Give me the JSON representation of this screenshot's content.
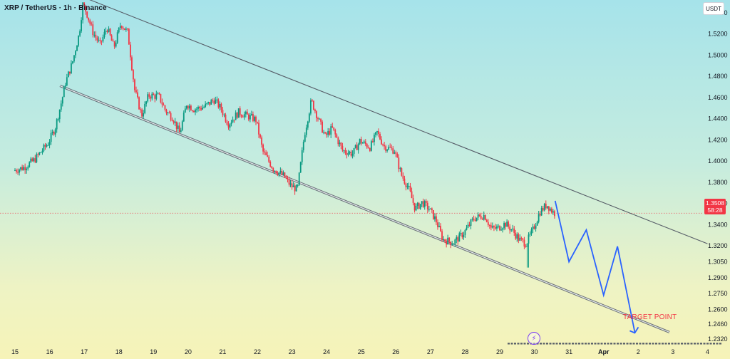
{
  "header": {
    "title": "XRP / TetherUS · 1h · Binance"
  },
  "currency_badge": "USDT",
  "current_price": {
    "value": "1.3508",
    "countdown": "58:28"
  },
  "annotation": {
    "target_label": "TARGET POINT"
  },
  "chart_data": {
    "type": "candlestick",
    "title": "XRP / TetherUS · 1h · Binance",
    "y_axis": {
      "ticks": [
        "1.5400",
        "1.5200",
        "1.5000",
        "1.4800",
        "1.4600",
        "1.4400",
        "1.4200",
        "1.4000",
        "1.3800",
        "1.3600",
        "1.3400",
        "1.3200",
        "1.3050",
        "1.2900",
        "1.2750",
        "1.2600",
        "1.2460",
        "1.2320"
      ],
      "ylim": [
        1.228,
        1.552
      ]
    },
    "x_axis": {
      "ticks": [
        "15",
        "16",
        "17",
        "18",
        "19",
        "20",
        "21",
        "22",
        "23",
        "24",
        "25",
        "26",
        "27",
        "28",
        "29",
        "30",
        "31",
        "Apr",
        "2",
        "3",
        "4"
      ],
      "day_range": [
        15,
        35.3
      ]
    },
    "price_path": [
      [
        15.0,
        1.391
      ],
      [
        15.3,
        1.394
      ],
      [
        15.6,
        1.401
      ],
      [
        15.8,
        1.409
      ],
      [
        16.0,
        1.417
      ],
      [
        16.2,
        1.431
      ],
      [
        16.4,
        1.458
      ],
      [
        16.5,
        1.474
      ],
      [
        16.7,
        1.493
      ],
      [
        16.9,
        1.521
      ],
      [
        17.0,
        1.548
      ],
      [
        17.1,
        1.541
      ],
      [
        17.3,
        1.521
      ],
      [
        17.5,
        1.51
      ],
      [
        17.7,
        1.526
      ],
      [
        17.9,
        1.507
      ],
      [
        18.1,
        1.53
      ],
      [
        18.3,
        1.521
      ],
      [
        18.5,
        1.467
      ],
      [
        18.7,
        1.443
      ],
      [
        18.9,
        1.462
      ],
      [
        19.2,
        1.461
      ],
      [
        19.4,
        1.447
      ],
      [
        19.6,
        1.441
      ],
      [
        19.8,
        1.426
      ],
      [
        20.0,
        1.454
      ],
      [
        20.2,
        1.449
      ],
      [
        20.5,
        1.451
      ],
      [
        20.8,
        1.458
      ],
      [
        21.0,
        1.449
      ],
      [
        21.2,
        1.435
      ],
      [
        21.5,
        1.446
      ],
      [
        21.8,
        1.442
      ],
      [
        22.0,
        1.439
      ],
      [
        22.2,
        1.409
      ],
      [
        22.5,
        1.393
      ],
      [
        22.8,
        1.386
      ],
      [
        23.0,
        1.377
      ],
      [
        23.2,
        1.373
      ],
      [
        23.4,
        1.425
      ],
      [
        23.6,
        1.457
      ],
      [
        23.8,
        1.44
      ],
      [
        24.0,
        1.423
      ],
      [
        24.2,
        1.431
      ],
      [
        24.5,
        1.41
      ],
      [
        24.8,
        1.407
      ],
      [
        25.0,
        1.419
      ],
      [
        25.3,
        1.413
      ],
      [
        25.5,
        1.427
      ],
      [
        25.7,
        1.414
      ],
      [
        26.0,
        1.41
      ],
      [
        26.2,
        1.387
      ],
      [
        26.4,
        1.375
      ],
      [
        26.6,
        1.355
      ],
      [
        26.8,
        1.361
      ],
      [
        27.0,
        1.355
      ],
      [
        27.2,
        1.344
      ],
      [
        27.4,
        1.326
      ],
      [
        27.7,
        1.323
      ],
      [
        28.0,
        1.332
      ],
      [
        28.3,
        1.346
      ],
      [
        28.6,
        1.349
      ],
      [
        28.8,
        1.336
      ],
      [
        29.0,
        1.337
      ],
      [
        29.2,
        1.341
      ],
      [
        29.4,
        1.335
      ],
      [
        29.6,
        1.326
      ],
      [
        29.8,
        1.322
      ],
      [
        30.0,
        1.335
      ],
      [
        30.2,
        1.352
      ],
      [
        30.4,
        1.359
      ],
      [
        30.6,
        1.351
      ]
    ],
    "wick_extremes": {
      "high": {
        "x": 17.0,
        "y": 1.548
      },
      "low": {
        "x": 29.8,
        "y": 1.2995
      }
    },
    "current_price": 1.3508,
    "channel": {
      "upper": [
        [
          17.1,
          1.553
        ],
        [
          35.0,
          1.322
        ]
      ],
      "lower": [
        [
          16.3,
          1.471
        ],
        [
          33.9,
          1.2385
        ]
      ]
    },
    "projection": [
      [
        30.6,
        1.3625
      ],
      [
        31.0,
        1.305
      ],
      [
        31.5,
        1.335
      ],
      [
        32.0,
        1.2735
      ],
      [
        32.4,
        1.3195
      ],
      [
        32.9,
        1.2385
      ]
    ],
    "target_level": 1.2385,
    "current_price_line": 1.3508,
    "colors": {
      "up": "#089981",
      "down": "#f23645",
      "channel": "#555b66",
      "projection": "#2962ff",
      "price_line": "#f23645",
      "target_line": "#555b66",
      "axis_text": "#131722"
    }
  }
}
